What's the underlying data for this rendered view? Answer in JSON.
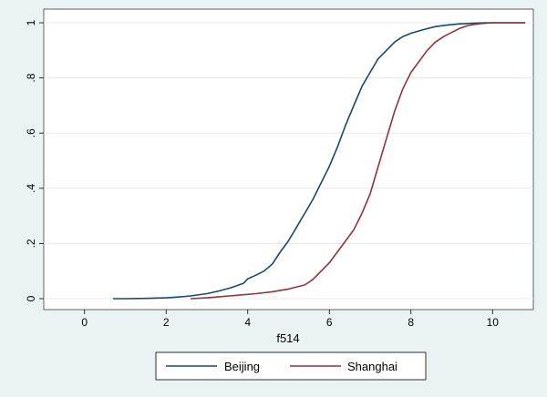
{
  "chart_data": {
    "type": "line",
    "title": "",
    "xlabel": "f514",
    "ylabel": "",
    "xlim": [
      -1,
      11
    ],
    "ylim": [
      0,
      1
    ],
    "x_ticks": [
      0,
      2,
      4,
      6,
      8,
      10
    ],
    "x_tick_labels": [
      "0",
      "2",
      "4",
      "6",
      "8",
      "10"
    ],
    "y_ticks": [
      0,
      0.2,
      0.4,
      0.6,
      0.8,
      1
    ],
    "y_tick_labels": [
      "0",
      ".2",
      ".4",
      ".6",
      ".8",
      "1"
    ],
    "grid": true,
    "legend_position": "bottom",
    "series": [
      {
        "name": "Beijing",
        "color": "#1a476f",
        "points": [
          [
            0.7,
            0.0
          ],
          [
            1.0,
            0.0
          ],
          [
            1.5,
            0.001
          ],
          [
            2.0,
            0.003
          ],
          [
            2.3,
            0.006
          ],
          [
            2.6,
            0.01
          ],
          [
            3.0,
            0.018
          ],
          [
            3.3,
            0.028
          ],
          [
            3.6,
            0.04
          ],
          [
            3.9,
            0.056
          ],
          [
            4.0,
            0.072
          ],
          [
            4.2,
            0.085
          ],
          [
            4.4,
            0.1
          ],
          [
            4.6,
            0.125
          ],
          [
            4.8,
            0.17
          ],
          [
            5.0,
            0.21
          ],
          [
            5.2,
            0.26
          ],
          [
            5.4,
            0.31
          ],
          [
            5.6,
            0.36
          ],
          [
            5.8,
            0.42
          ],
          [
            6.0,
            0.48
          ],
          [
            6.2,
            0.55
          ],
          [
            6.4,
            0.63
          ],
          [
            6.6,
            0.7
          ],
          [
            6.8,
            0.77
          ],
          [
            7.0,
            0.82
          ],
          [
            7.2,
            0.87
          ],
          [
            7.4,
            0.9
          ],
          [
            7.6,
            0.93
          ],
          [
            7.8,
            0.95
          ],
          [
            8.0,
            0.962
          ],
          [
            8.3,
            0.975
          ],
          [
            8.6,
            0.986
          ],
          [
            8.9,
            0.992
          ],
          [
            9.2,
            0.996
          ],
          [
            9.5,
            0.998
          ],
          [
            9.8,
            1.0
          ],
          [
            10.8,
            1.0
          ]
        ]
      },
      {
        "name": "Shanghai",
        "color": "#90353b",
        "points": [
          [
            2.6,
            0.0
          ],
          [
            3.0,
            0.003
          ],
          [
            3.4,
            0.008
          ],
          [
            3.8,
            0.013
          ],
          [
            4.2,
            0.018
          ],
          [
            4.6,
            0.025
          ],
          [
            5.0,
            0.035
          ],
          [
            5.4,
            0.05
          ],
          [
            5.6,
            0.07
          ],
          [
            5.8,
            0.1
          ],
          [
            6.0,
            0.13
          ],
          [
            6.2,
            0.17
          ],
          [
            6.4,
            0.21
          ],
          [
            6.6,
            0.25
          ],
          [
            6.8,
            0.31
          ],
          [
            7.0,
            0.38
          ],
          [
            7.2,
            0.48
          ],
          [
            7.4,
            0.58
          ],
          [
            7.6,
            0.68
          ],
          [
            7.8,
            0.76
          ],
          [
            8.0,
            0.82
          ],
          [
            8.2,
            0.86
          ],
          [
            8.4,
            0.9
          ],
          [
            8.6,
            0.93
          ],
          [
            8.8,
            0.95
          ],
          [
            9.0,
            0.965
          ],
          [
            9.2,
            0.98
          ],
          [
            9.4,
            0.99
          ],
          [
            9.7,
            0.997
          ],
          [
            10.0,
            1.0
          ],
          [
            10.8,
            1.0
          ]
        ]
      }
    ]
  }
}
